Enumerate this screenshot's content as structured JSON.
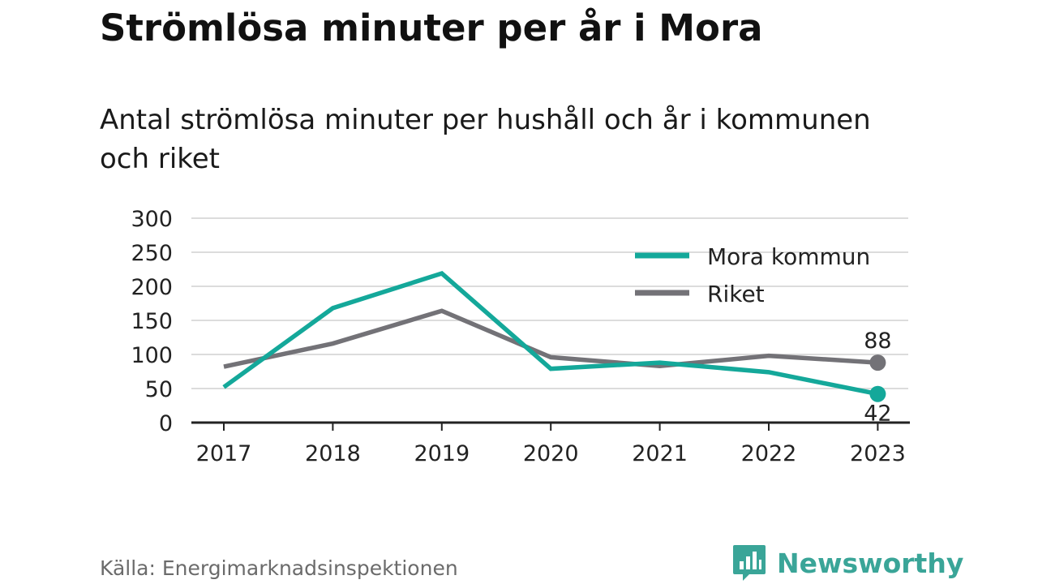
{
  "title": "Strömlösa minuter per år i Mora",
  "subtitle": "Antal strömlösa minuter per hushåll och år i kommunen och riket",
  "source": "Källa: Energimarknadsinspektionen",
  "brand": {
    "name": "Newsworthy",
    "icon": "newsworthy-logo-icon",
    "color": "#3aa598"
  },
  "colors": {
    "mora": "#14a89a",
    "riket": "#737277",
    "grid": "#dcdcdc",
    "axis": "#222222"
  },
  "chart_data": {
    "type": "line",
    "categories": [
      "2017",
      "2018",
      "2019",
      "2020",
      "2021",
      "2022",
      "2023"
    ],
    "series": [
      {
        "name": "Mora kommun",
        "values": [
          52,
          168,
          219,
          79,
          88,
          74,
          42
        ],
        "end_label": "42"
      },
      {
        "name": "Riket",
        "values": [
          82,
          116,
          164,
          96,
          83,
          98,
          88
        ],
        "end_label": "88"
      }
    ],
    "ylim": [
      0,
      300
    ],
    "yticks": [
      "0",
      "50",
      "100",
      "150",
      "200",
      "250",
      "300"
    ],
    "grid": true,
    "legend_position": "top-right"
  }
}
